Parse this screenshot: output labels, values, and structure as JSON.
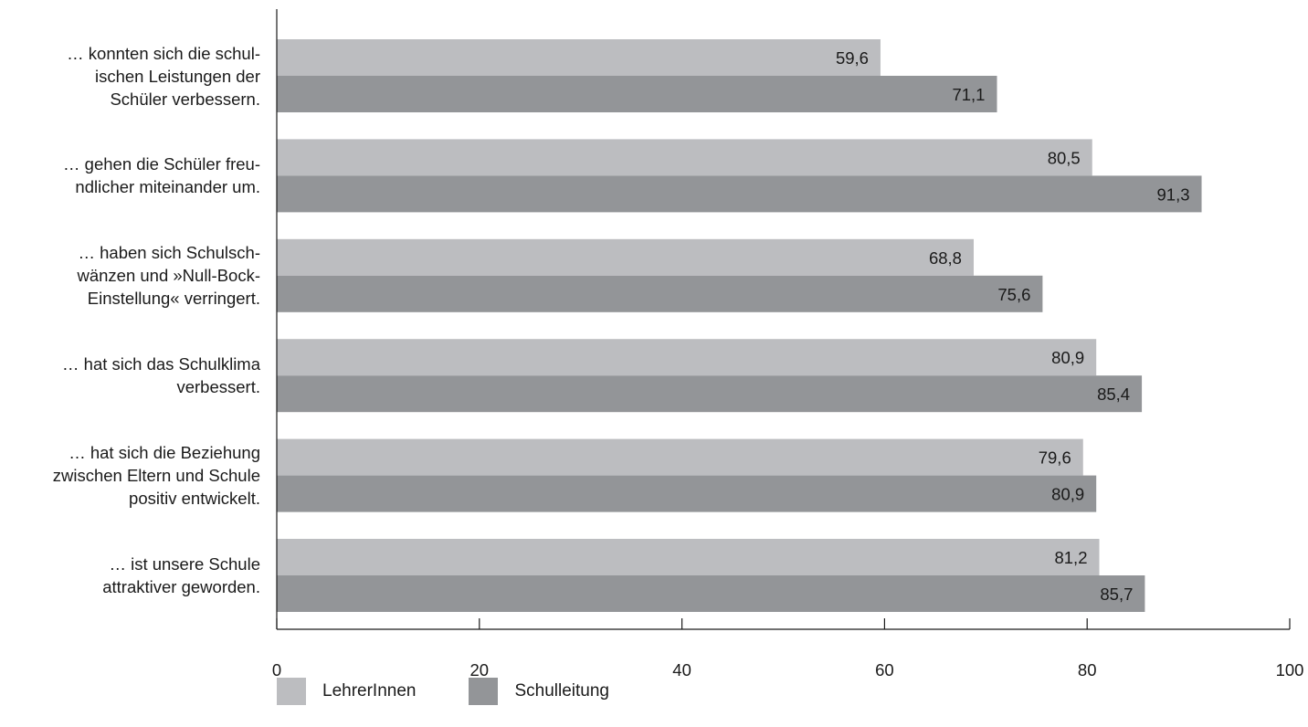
{
  "chart_data": {
    "type": "bar",
    "orientation": "horizontal",
    "categories": [
      "… konnten sich die schul- ischen Leistungen der Schüler verbessern.",
      "… gehen die Schüler freu- ndlicher miteinander um.",
      "… haben sich Schulsch- wänzen und »Null-Bock- Einstellung« verringert.",
      "… hat sich das Schulklima verbessert.",
      "… hat sich die Beziehung zwischen Eltern und Schule positiv entwickelt.",
      "… ist unsere Schule attraktiver geworden."
    ],
    "category_lines": [
      [
        "… konnten sich die schul-",
        "ischen Leistungen der",
        "Schüler verbessern."
      ],
      [
        "… gehen die Schüler freu-",
        "ndlicher miteinander um."
      ],
      [
        "… haben sich Schulsch-",
        "wänzen und »Null-Bock-",
        "Einstellung« verringert."
      ],
      [
        "… hat sich das Schulklima",
        "verbessert."
      ],
      [
        "… hat sich die Beziehung",
        "zwischen Eltern und Schule",
        "positiv entwickelt."
      ],
      [
        "… ist unsere Schule",
        "attraktiver geworden."
      ]
    ],
    "series": [
      {
        "name": "LehrerInnen",
        "color": "#bcbdc0",
        "values": [
          59.6,
          80.5,
          68.8,
          80.9,
          79.6,
          81.2
        ],
        "labels": [
          "59,6",
          "80,5",
          "68,8",
          "80,9",
          "79,6",
          "81,2"
        ]
      },
      {
        "name": "Schulleitung",
        "color": "#939598",
        "values": [
          71.1,
          91.3,
          75.6,
          85.4,
          80.9,
          85.7
        ],
        "labels": [
          "71,1",
          "91,3",
          "75,6",
          "85,4",
          "80,9",
          "85,7"
        ]
      }
    ],
    "xlim": [
      0,
      100
    ],
    "xticks": [
      0,
      20,
      40,
      60,
      80,
      100
    ],
    "grid": false,
    "legend_position": "bottom-left"
  }
}
